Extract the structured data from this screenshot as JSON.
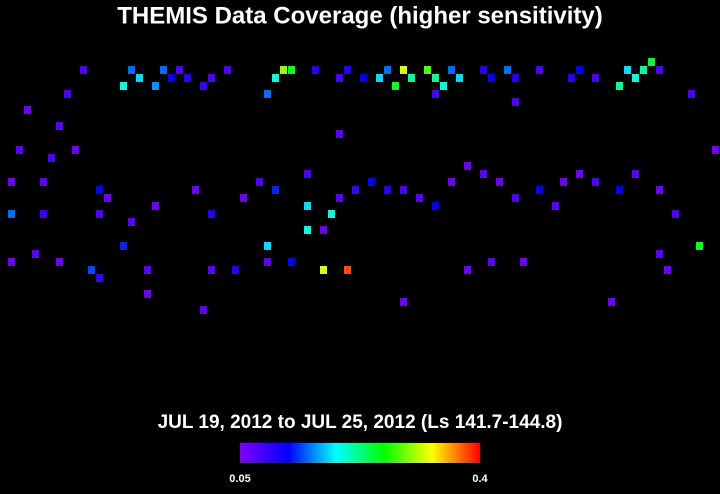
{
  "chart_data": {
    "type": "heatmap",
    "title": "THEMIS Data Coverage (higher sensitivity)",
    "subtitle": "JUL 19, 2012 to JUL 25, 2012 (Ls 141.7-144.8)",
    "xlim": [
      0,
      90
    ],
    "ylim": [
      0,
      40
    ],
    "clim": [
      0.05,
      0.4
    ],
    "colorbar_ticks": [
      0.05,
      0.4
    ],
    "colormap": [
      "#8000ff",
      "#0000ff",
      "#00ffff",
      "#00ff00",
      "#ffff00",
      "#ff0000"
    ],
    "x": [
      10,
      8,
      16,
      17,
      15,
      20,
      21,
      19,
      22,
      23,
      25,
      26,
      28,
      35,
      36,
      34,
      33,
      39,
      42,
      43,
      45,
      47,
      48,
      50,
      51,
      49,
      53,
      54,
      56,
      57,
      55,
      60,
      61,
      63,
      64,
      67,
      72,
      71,
      74,
      78,
      79,
      81,
      80,
      77,
      82,
      86,
      54,
      64,
      3,
      7,
      2,
      6,
      9,
      12,
      1,
      5,
      1,
      5,
      12,
      13,
      16,
      19,
      24,
      26,
      30,
      32,
      34,
      38,
      38,
      40,
      42,
      42,
      44,
      46,
      48,
      50,
      52,
      54,
      56,
      58,
      60,
      62,
      64,
      67,
      69,
      70,
      72,
      74,
      77,
      79,
      82,
      84,
      87,
      89,
      1,
      4,
      7,
      11,
      15,
      18,
      26,
      29,
      33,
      36,
      40,
      43,
      12,
      33,
      38,
      41,
      25,
      18,
      50,
      58,
      61,
      65,
      76,
      82,
      83
    ],
    "y": [
      2,
      5,
      2,
      3,
      4,
      2,
      3,
      4,
      2,
      3,
      4,
      3,
      2,
      2,
      2,
      3,
      5,
      2,
      3,
      2,
      3,
      3,
      2,
      2,
      3,
      4,
      2,
      3,
      2,
      3,
      4,
      2,
      3,
      2,
      3,
      2,
      2,
      3,
      3,
      2,
      3,
      1,
      2,
      4,
      2,
      5,
      5,
      6,
      7,
      9,
      12,
      13,
      12,
      17,
      16,
      16,
      20,
      20,
      20,
      18,
      21,
      19,
      17,
      20,
      18,
      16,
      17,
      19,
      15,
      22,
      18,
      10,
      17,
      16,
      17,
      17,
      18,
      19,
      16,
      14,
      15,
      16,
      18,
      17,
      19,
      16,
      15,
      16,
      17,
      15,
      17,
      20,
      24,
      12,
      26,
      25,
      26,
      27,
      24,
      27,
      27,
      27,
      26,
      26,
      27,
      27,
      28,
      24,
      22,
      20,
      32,
      30,
      31,
      27,
      26,
      26,
      31,
      25,
      27
    ],
    "values": [
      0.08,
      0.08,
      0.15,
      0.18,
      0.2,
      0.15,
      0.12,
      0.16,
      0.08,
      0.1,
      0.09,
      0.08,
      0.08,
      0.3,
      0.25,
      0.2,
      0.15,
      0.1,
      0.08,
      0.1,
      0.12,
      0.18,
      0.15,
      0.32,
      0.22,
      0.25,
      0.28,
      0.22,
      0.15,
      0.18,
      0.2,
      0.1,
      0.12,
      0.15,
      0.1,
      0.08,
      0.12,
      0.1,
      0.08,
      0.18,
      0.2,
      0.25,
      0.22,
      0.22,
      0.08,
      0.08,
      0.08,
      0.08,
      0.06,
      0.07,
      0.07,
      0.08,
      0.06,
      0.12,
      0.06,
      0.07,
      0.15,
      0.09,
      0.08,
      0.06,
      0.07,
      0.06,
      0.06,
      0.1,
      0.06,
      0.08,
      0.13,
      0.18,
      0.08,
      0.06,
      0.07,
      0.07,
      0.09,
      0.12,
      0.1,
      0.08,
      0.07,
      0.12,
      0.06,
      0.06,
      0.07,
      0.06,
      0.08,
      0.12,
      0.07,
      0.06,
      0.06,
      0.08,
      0.12,
      0.07,
      0.06,
      0.08,
      0.25,
      0.06,
      0.06,
      0.07,
      0.06,
      0.14,
      0.13,
      0.07,
      0.07,
      0.1,
      0.07,
      0.12,
      0.32,
      0.38,
      0.09,
      0.18,
      0.2,
      0.2,
      0.07,
      0.06,
      0.06,
      0.06,
      0.07,
      0.06,
      0.06,
      0.07,
      0.06
    ]
  }
}
